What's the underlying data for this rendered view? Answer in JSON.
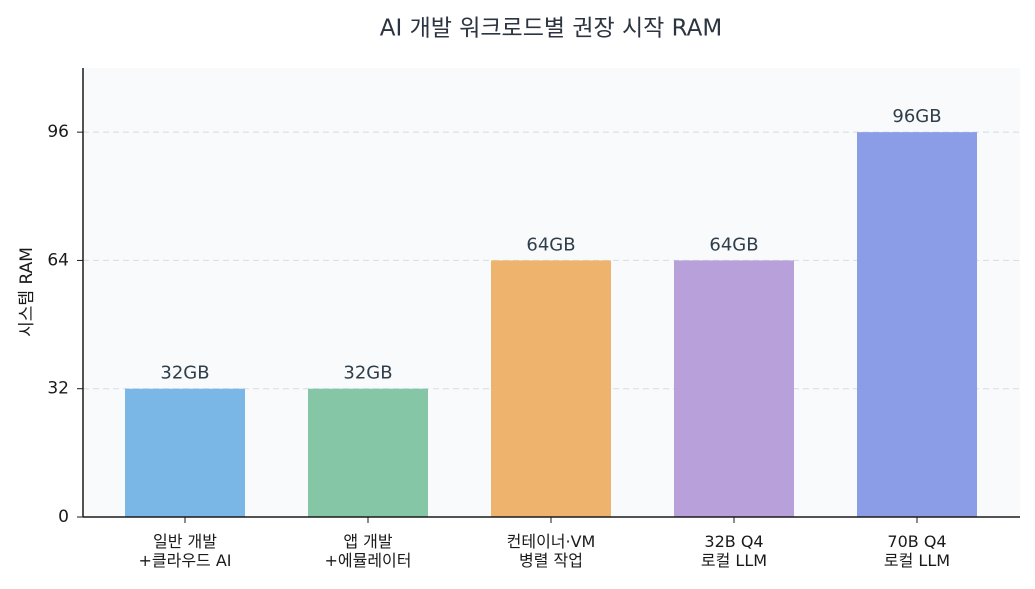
{
  "chart_data": {
    "type": "bar",
    "title": "AI 개발 워크로드별 권장 시작 RAM",
    "y_label": "시스템 RAM",
    "categories": [
      "일반 개발\n+클라우드 AI",
      "앱 개발\n+에뮬레이터",
      "컨테이너·VM\n병렬 작업",
      "32B Q4\n로컬 LLM",
      "70B Q4\n로컬 LLM"
    ],
    "values": [
      32,
      32,
      64,
      64,
      96
    ],
    "value_labels": [
      "32GB",
      "32GB",
      "64GB",
      "64GB",
      "96GB"
    ],
    "colors": [
      "#7ab6e6",
      "#84c6a6",
      "#eeb46e",
      "#b8a0da",
      "#8a9de6"
    ],
    "ylim": [
      0,
      112
    ],
    "yticks": [
      0,
      32,
      64,
      96
    ],
    "grid": true
  }
}
